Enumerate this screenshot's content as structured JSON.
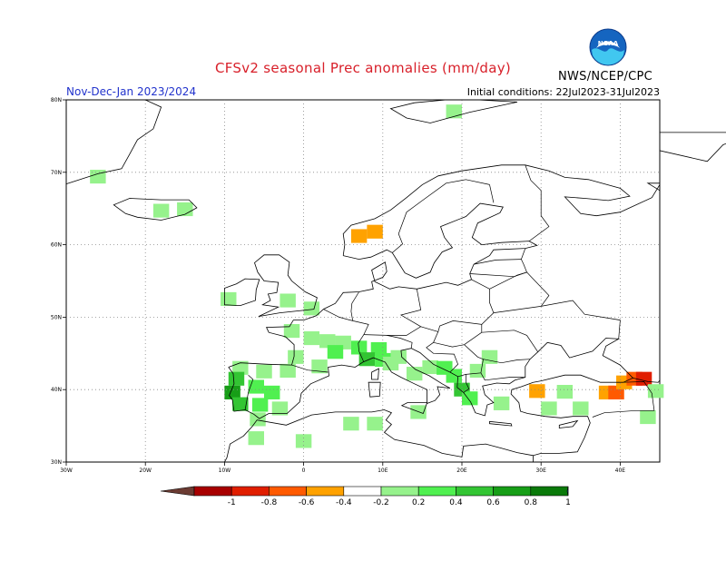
{
  "header": {
    "title": "CFSv2 seasonal Prec anomalies (mm/day)",
    "period": "Nov-Dec-Jan 2023/2024",
    "initial_conditions": "Initial conditions: 22Jul2023-31Jul2023",
    "agency": "NWS/NCEP/CPC",
    "logo_icon": "noaa-logo-icon",
    "logo_text": "NOAA"
  },
  "map": {
    "projection": "lat-lon",
    "lon_range": [
      -30,
      45
    ],
    "lat_range": [
      30,
      80
    ],
    "lat_ticks": [
      "80N",
      "70N",
      "60N",
      "50N",
      "40N",
      "30N"
    ],
    "lon_ticks": [
      "30W",
      "20W",
      "10W",
      "0",
      "10E",
      "20E",
      "30E",
      "40E"
    ],
    "grid": "dotted",
    "land_color": "#ffffff",
    "coast_color": "#000000"
  },
  "colorbar": {
    "labels": [
      "-1",
      "-0.8",
      "-0.6",
      "-0.4",
      "-0.2",
      "0.2",
      "0.4",
      "0.6",
      "0.8",
      "1"
    ],
    "colors": [
      "#6b3b32",
      "#a80000",
      "#e01e00",
      "#ff5a00",
      "#ffa200",
      "#ffffff",
      "#96f28c",
      "#50f050",
      "#33c533",
      "#179e17",
      "#0a7a0a",
      "#1e6edc"
    ]
  },
  "chart_data": {
    "type": "heatmap",
    "variable": "Prec anomalies (mm/day)",
    "cells": [
      {
        "lon": -26,
        "lat": 69.4,
        "value": 0.3
      },
      {
        "lon": -18,
        "lat": 64.7,
        "value": 0.3
      },
      {
        "lon": -15,
        "lat": 64.9,
        "value": 0.3
      },
      {
        "lon": 7,
        "lat": 61.2,
        "value": -0.3
      },
      {
        "lon": 9,
        "lat": 61.8,
        "value": -0.3
      },
      {
        "lon": 19,
        "lat": 78.4,
        "value": 0.3
      },
      {
        "lon": -9.5,
        "lat": 52.5,
        "value": 0.3
      },
      {
        "lon": -2,
        "lat": 52.3,
        "value": 0.3
      },
      {
        "lon": 1,
        "lat": 51.2,
        "value": 0.3
      },
      {
        "lon": -1.5,
        "lat": 48.1,
        "value": 0.3
      },
      {
        "lon": 1,
        "lat": 47.1,
        "value": 0.3
      },
      {
        "lon": 3,
        "lat": 46.7,
        "value": 0.3
      },
      {
        "lon": 5,
        "lat": 46.5,
        "value": 0.3
      },
      {
        "lon": 4,
        "lat": 45.2,
        "value": 0.5
      },
      {
        "lon": 7,
        "lat": 45.8,
        "value": 0.5
      },
      {
        "lon": 9.5,
        "lat": 45.6,
        "value": 0.5
      },
      {
        "lon": 8,
        "lat": 44.2,
        "value": 0.7
      },
      {
        "lon": 10,
        "lat": 44.1,
        "value": 0.5
      },
      {
        "lon": 12,
        "lat": 44.5,
        "value": 0.3
      },
      {
        "lon": 11,
        "lat": 43.6,
        "value": 0.3
      },
      {
        "lon": 2,
        "lat": 43.2,
        "value": 0.3
      },
      {
        "lon": -1,
        "lat": 44.5,
        "value": 0.3
      },
      {
        "lon": -8,
        "lat": 43.0,
        "value": 0.3
      },
      {
        "lon": -5,
        "lat": 42.5,
        "value": 0.3
      },
      {
        "lon": -2,
        "lat": 42.6,
        "value": 0.3
      },
      {
        "lon": -8.5,
        "lat": 41.5,
        "value": 0.7
      },
      {
        "lon": -9,
        "lat": 39.6,
        "value": 0.9
      },
      {
        "lon": -8,
        "lat": 38.0,
        "value": 0.7
      },
      {
        "lon": -6,
        "lat": 40.4,
        "value": 0.5
      },
      {
        "lon": -4,
        "lat": 39.6,
        "value": 0.5
      },
      {
        "lon": -5.5,
        "lat": 37.9,
        "value": 0.5
      },
      {
        "lon": -3,
        "lat": 37.4,
        "value": 0.3
      },
      {
        "lon": -5.8,
        "lat": 35.9,
        "value": 0.3
      },
      {
        "lon": -6,
        "lat": 33.3,
        "value": 0.3
      },
      {
        "lon": 0,
        "lat": 32.9,
        "value": 0.3
      },
      {
        "lon": 6,
        "lat": 35.3,
        "value": 0.3
      },
      {
        "lon": 9,
        "lat": 35.3,
        "value": 0.3
      },
      {
        "lon": 14.5,
        "lat": 36.9,
        "value": 0.3
      },
      {
        "lon": 14,
        "lat": 42.2,
        "value": 0.3
      },
      {
        "lon": 16,
        "lat": 43.1,
        "value": 0.3
      },
      {
        "lon": 17.8,
        "lat": 43.0,
        "value": 0.5
      },
      {
        "lon": 19,
        "lat": 41.9,
        "value": 0.5
      },
      {
        "lon": 20,
        "lat": 40.0,
        "value": 0.7
      },
      {
        "lon": 21,
        "lat": 38.8,
        "value": 0.5
      },
      {
        "lon": 22,
        "lat": 42.6,
        "value": 0.3
      },
      {
        "lon": 23.5,
        "lat": 44.5,
        "value": 0.3
      },
      {
        "lon": 25,
        "lat": 38.1,
        "value": 0.3
      },
      {
        "lon": 29.5,
        "lat": 39.8,
        "value": -0.3
      },
      {
        "lon": 33,
        "lat": 39.7,
        "value": 0.3
      },
      {
        "lon": 31,
        "lat": 37.4,
        "value": 0.3
      },
      {
        "lon": 35,
        "lat": 37.4,
        "value": 0.3
      },
      {
        "lon": 38.3,
        "lat": 39.6,
        "value": -0.3
      },
      {
        "lon": 39.5,
        "lat": 39.6,
        "value": -0.5
      },
      {
        "lon": 40.5,
        "lat": 41.0,
        "value": -0.3
      },
      {
        "lon": 41.8,
        "lat": 41.5,
        "value": -0.5
      },
      {
        "lon": 43,
        "lat": 41.5,
        "value": -0.7
      },
      {
        "lon": 44.5,
        "lat": 39.8,
        "value": 0.3
      },
      {
        "lon": 43.5,
        "lat": 36.2,
        "value": 0.3
      }
    ]
  }
}
